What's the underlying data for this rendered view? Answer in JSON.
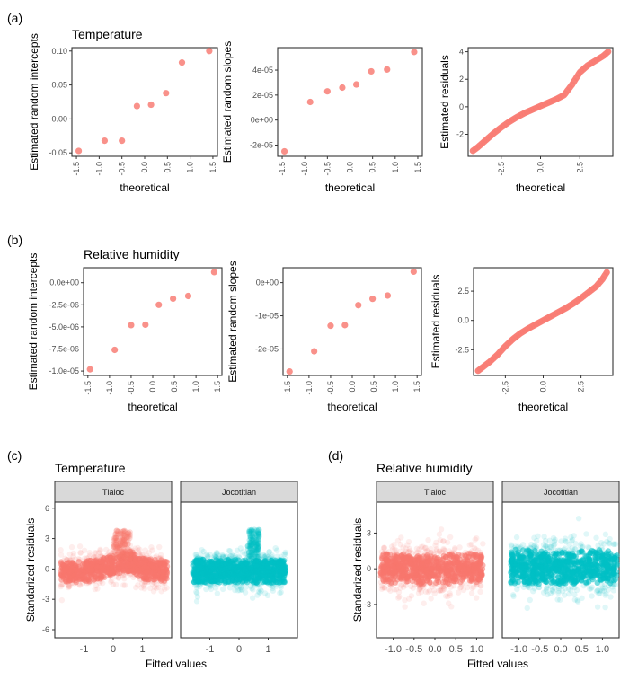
{
  "figure": {
    "panel_tags": [
      "(a)",
      "(b)",
      "(c)",
      "(d)"
    ],
    "colors": {
      "salmon": "#F8766D",
      "cyan": "#00BFC4",
      "strip_bg": "#D9D9D9",
      "frame": "#333333"
    }
  },
  "chart_data": [
    {
      "id": "a1",
      "type": "scatter",
      "tag": "(a)",
      "title": "Temperature",
      "xlabel": "theoretical",
      "ylabel": "Estimated random intercepts",
      "xlim": [
        -1.6,
        1.6
      ],
      "ylim": [
        -0.055,
        0.105
      ],
      "xticks": [
        -1.5,
        -1.0,
        -0.5,
        0.0,
        0.5,
        1.0,
        1.5
      ],
      "xtick_labels": [
        "-1.5",
        "-1.0",
        "-0.5",
        "0.0",
        "0.5",
        "1.0",
        "1.5"
      ],
      "xticks_rotated": true,
      "yticks": [
        -0.05,
        0.0,
        0.05,
        0.1
      ],
      "ytick_labels": [
        "-0.05",
        "0.00",
        "0.05",
        "0.10"
      ],
      "x": [
        -1.45,
        -0.88,
        -0.5,
        -0.17,
        0.14,
        0.47,
        0.82,
        1.42
      ],
      "y": [
        -0.047,
        -0.032,
        -0.032,
        0.019,
        0.021,
        0.038,
        0.083,
        0.1
      ]
    },
    {
      "id": "a2",
      "type": "scatter",
      "title": "",
      "xlabel": "theoretical",
      "ylabel": "Estimated random slopes",
      "xlim": [
        -1.6,
        1.6
      ],
      "ylim": [
        -2.9e-05,
        5.8e-05
      ],
      "xticks": [
        -1.5,
        -1.0,
        -0.5,
        0.0,
        0.5,
        1.0,
        1.5
      ],
      "xtick_labels": [
        "-1.5",
        "-1.0",
        "-0.5",
        "0.0",
        "0.5",
        "1.0",
        "1.5"
      ],
      "xticks_rotated": true,
      "yticks": [
        -2e-05,
        0,
        2e-05,
        4e-05
      ],
      "ytick_labels": [
        "-2e-05",
        "0e+00",
        "2e-05",
        "4e-05"
      ],
      "x": [
        -1.45,
        -0.88,
        -0.5,
        -0.17,
        0.14,
        0.47,
        0.82,
        1.42
      ],
      "y": [
        -2.5e-05,
        1.45e-05,
        2.3e-05,
        2.6e-05,
        2.85e-05,
        3.9e-05,
        4.05e-05,
        5.45e-05
      ]
    },
    {
      "id": "a3",
      "type": "line",
      "title": "",
      "xlabel": "theoretical",
      "ylabel": "Estimated residuals",
      "xlim": [
        -4.6,
        4.6
      ],
      "ylim": [
        -3.6,
        4.3
      ],
      "xticks": [
        -2.5,
        0.0,
        2.5
      ],
      "xtick_labels": [
        "-2.5",
        "0.0",
        "2.5"
      ],
      "xticks_rotated": true,
      "yticks": [
        -2,
        0,
        2,
        4
      ],
      "ytick_labels": [
        "-2",
        "0",
        "2",
        "4"
      ],
      "curve_x": [
        -4.3,
        -4.0,
        -3.5,
        -3.0,
        -2.5,
        -2.0,
        -1.5,
        -1.0,
        -0.5,
        0.0,
        0.5,
        1.0,
        1.5,
        2.0,
        2.5,
        3.0,
        3.5,
        4.0,
        4.3
      ],
      "curve_y": [
        -3.2,
        -2.95,
        -2.45,
        -1.95,
        -1.5,
        -1.1,
        -0.75,
        -0.45,
        -0.2,
        0.05,
        0.3,
        0.55,
        0.85,
        1.6,
        2.5,
        3.0,
        3.35,
        3.7,
        4.0
      ]
    },
    {
      "id": "b1",
      "type": "scatter",
      "tag": "(b)",
      "title": "Relative humidity",
      "xlabel": "theoretical",
      "ylabel": "Estimated random intercepts",
      "xlim": [
        -1.6,
        1.6
      ],
      "ylim": [
        -1.05e-05,
        1.7e-06
      ],
      "xticks": [
        -1.5,
        -1.0,
        -0.5,
        0.0,
        0.5,
        1.0,
        1.5
      ],
      "xtick_labels": [
        "-1.5",
        "-1.0",
        "-0.5",
        "0.0",
        "0.5",
        "1.0",
        "1.5"
      ],
      "xticks_rotated": true,
      "yticks": [
        -1e-05,
        -7.5e-06,
        -5e-06,
        -2.5e-06,
        0.0
      ],
      "ytick_labels": [
        "-1.0e-05",
        "-7.5e-06",
        "-5.0e-06",
        "-2.5e-06",
        "0.0e+00"
      ],
      "x": [
        -1.45,
        -0.88,
        -0.5,
        -0.17,
        0.14,
        0.47,
        0.82,
        1.42
      ],
      "y": [
        -9.8e-06,
        -7.6e-06,
        -4.8e-06,
        -4.75e-06,
        -2.5e-06,
        -1.8e-06,
        -1.5e-06,
        1.2e-06
      ]
    },
    {
      "id": "b2",
      "type": "scatter",
      "title": "",
      "xlabel": "theoretical",
      "ylabel": "Estimated random slopes",
      "xlim": [
        -1.6,
        1.6
      ],
      "ylim": [
        -2.8e-05,
        4.5e-06
      ],
      "xticks": [
        -1.5,
        -1.0,
        -0.5,
        0.0,
        0.5,
        1.0,
        1.5
      ],
      "xtick_labels": [
        "-1.5",
        "-1.0",
        "-0.5",
        "0.0",
        "0.5",
        "1.0",
        "1.5"
      ],
      "xticks_rotated": true,
      "yticks": [
        -2e-05,
        -1e-05,
        0
      ],
      "ytick_labels": [
        "-2e-05",
        "-1e-05",
        "0e+00"
      ],
      "x": [
        -1.45,
        -0.88,
        -0.5,
        -0.17,
        0.14,
        0.47,
        0.82,
        1.42
      ],
      "y": [
        -2.68e-05,
        -2.07e-05,
        -1.3e-05,
        -1.28e-05,
        -6.8e-06,
        -4.9e-06,
        -3.9e-06,
        3.3e-06
      ]
    },
    {
      "id": "b3",
      "type": "line",
      "title": "",
      "xlabel": "theoretical",
      "ylabel": "Estimated residuals",
      "xlim": [
        -4.6,
        4.6
      ],
      "ylim": [
        -4.7,
        4.5
      ],
      "xticks": [
        -2.5,
        0.0,
        2.5
      ],
      "xtick_labels": [
        "-2.5",
        "0.0",
        "2.5"
      ],
      "xticks_rotated": true,
      "yticks": [
        -2.5,
        0.0,
        2.5
      ],
      "ytick_labels": [
        "-2.5",
        "0.0",
        "2.5"
      ],
      "curve_x": [
        -4.3,
        -4.0,
        -3.5,
        -3.0,
        -2.5,
        -2.0,
        -1.5,
        -1.0,
        -0.5,
        0.0,
        0.5,
        1.0,
        1.5,
        2.0,
        2.5,
        3.0,
        3.5,
        3.9,
        4.2
      ],
      "curve_y": [
        -4.3,
        -4.0,
        -3.5,
        -2.9,
        -2.2,
        -1.6,
        -1.1,
        -0.7,
        -0.35,
        0.0,
        0.35,
        0.7,
        1.05,
        1.45,
        1.9,
        2.4,
        2.9,
        3.5,
        4.1
      ]
    },
    {
      "id": "c",
      "type": "scatter",
      "tag": "(c)",
      "title": "Temperature",
      "xlabel": "Fitted values",
      "ylabel": "Standarized residuals",
      "ylim": [
        -6.8,
        6.6
      ],
      "yticks": [
        -6,
        -3,
        0,
        3,
        6
      ],
      "ytick_labels": [
        "-6",
        "-3",
        "0",
        "3",
        "6"
      ],
      "facets": [
        {
          "label": "Tlaloc",
          "color": "#F8766D",
          "xlim": [
            -2.0,
            2.0
          ],
          "xticks": [
            -1,
            0,
            1
          ],
          "xtick_labels": [
            "-1",
            "0",
            "1"
          ],
          "cloud": {
            "x_range": [
              -1.8,
              1.85
            ],
            "core_sd": 0.8,
            "mean_profile_x": [
              -1.8,
              -1.0,
              -0.3,
              0.2,
              0.6,
              1.0,
              1.8
            ],
            "mean_profile_y": [
              -0.3,
              -0.3,
              0.1,
              0.6,
              0.8,
              0.0,
              -0.2
            ],
            "hi_spike": [
              0.0,
              0.6,
              3.8
            ]
          }
        },
        {
          "label": "Jocotitlan",
          "color": "#00BFC4",
          "xlim": [
            -2.0,
            2.0
          ],
          "xticks": [
            -1,
            0,
            1
          ],
          "xtick_labels": [
            "-1",
            "0",
            "1"
          ],
          "cloud": {
            "x_range": [
              -1.55,
              1.6
            ],
            "core_sd": 0.9,
            "mean_profile_x": [
              -1.55,
              0.0,
              1.6
            ],
            "mean_profile_y": [
              -0.2,
              -0.2,
              -0.3
            ],
            "hi_spike": [
              0.3,
              0.7,
              3.9
            ]
          }
        }
      ]
    },
    {
      "id": "d",
      "type": "scatter",
      "tag": "(d)",
      "title": "Relative humidity",
      "xlabel": "Fitted values",
      "ylabel": "Standarized residuals",
      "ylim": [
        -5.8,
        5.6
      ],
      "yticks": [
        -3,
        0,
        3
      ],
      "ytick_labels": [
        "-3",
        "0",
        "3"
      ],
      "facets": [
        {
          "label": "Tlaloc",
          "color": "#F8766D",
          "xlim": [
            -1.4,
            1.4
          ],
          "xticks": [
            -1.0,
            -0.5,
            0.0,
            0.5,
            1.0
          ],
          "xtick_labels": [
            "-1.0",
            "-0.5",
            "0.0",
            "0.5",
            "1.0"
          ],
          "cloud": {
            "x_range": [
              -1.3,
              1.15
            ],
            "core_sd": 0.95,
            "mean_profile_x": [
              -1.3,
              0.0,
              1.15
            ],
            "mean_profile_y": [
              0.1,
              -0.1,
              0.1
            ],
            "hi_spike": [
              0,
              0,
              0
            ]
          }
        },
        {
          "label": "Jocotitlan",
          "color": "#00BFC4",
          "xlim": [
            -1.4,
            1.4
          ],
          "xticks": [
            -1.0,
            -0.5,
            0.0,
            0.5,
            1.0
          ],
          "xtick_labels": [
            "-1.0",
            "-0.5",
            "0.0",
            "0.5",
            "1.0"
          ],
          "cloud": {
            "x_range": [
              -1.2,
              1.35
            ],
            "core_sd": 1.1,
            "mean_profile_x": [
              -1.2,
              0.0,
              1.35
            ],
            "mean_profile_y": [
              0.2,
              0.0,
              0.2
            ],
            "hi_spike": [
              0,
              0,
              0
            ]
          }
        }
      ]
    }
  ]
}
